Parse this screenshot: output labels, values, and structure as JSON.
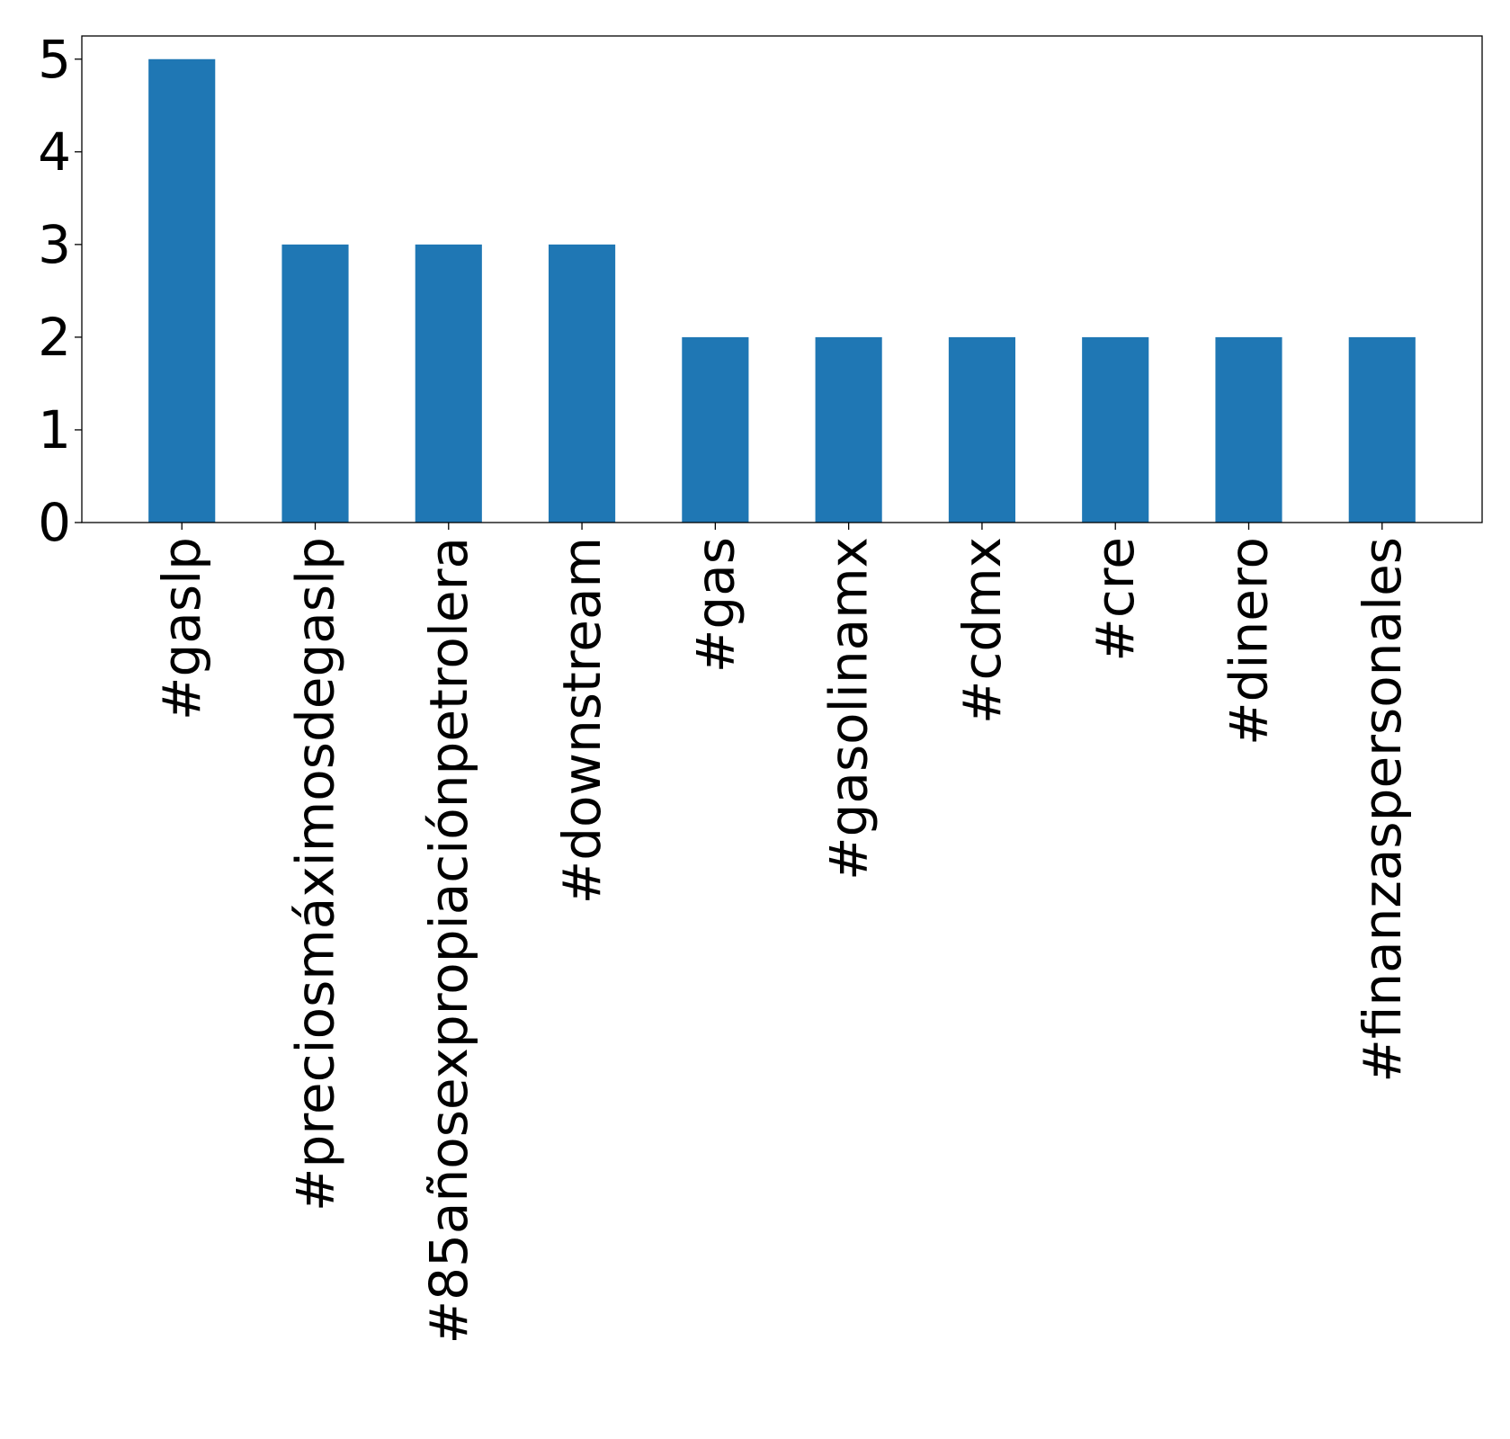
{
  "chart_data": {
    "type": "bar",
    "categories": [
      "#gaslp",
      "#preciosmáximosdegaslp",
      "#85añosexpropiaciónpetrolera",
      "#downstream",
      "#gas",
      "#gasolinamx",
      "#cdmx",
      "#cre",
      "#dinero",
      "#finanzaspersonales"
    ],
    "values": [
      5,
      3,
      3,
      3,
      2,
      2,
      2,
      2,
      2,
      2
    ],
    "ylim": [
      0,
      5.25
    ],
    "yticks": [
      0,
      1,
      2,
      3,
      4,
      5
    ],
    "bar_color": "#1f77b4",
    "grid": false,
    "legend": false
  }
}
